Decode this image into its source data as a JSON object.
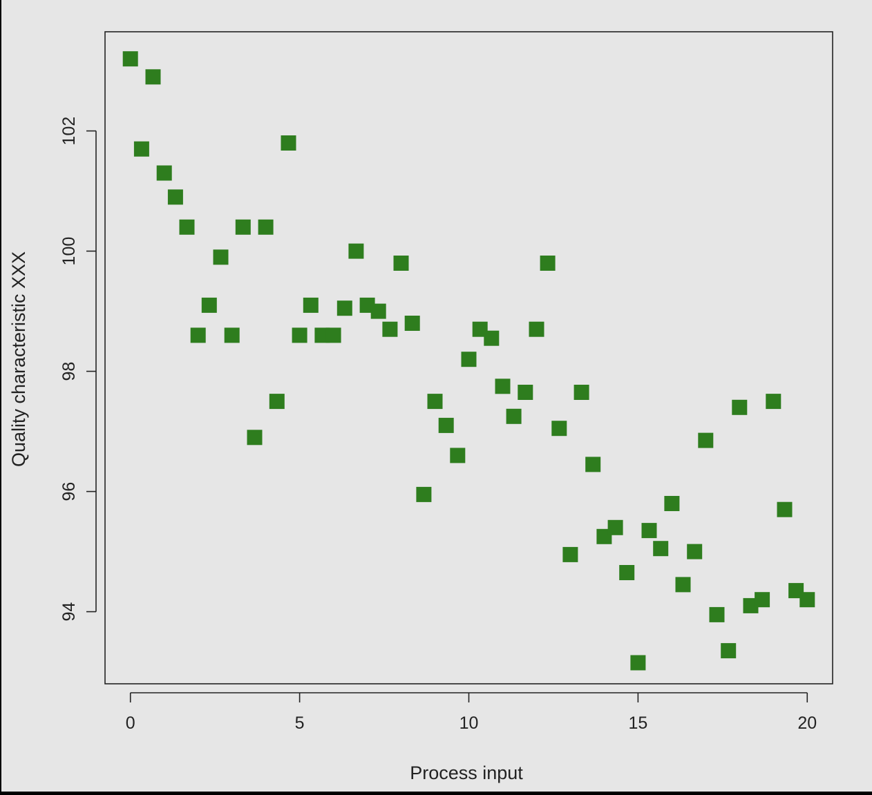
{
  "chart_data": {
    "type": "scatter",
    "title": "",
    "xlabel": "Process input",
    "ylabel": "Quality characteristic XXX",
    "xlim": [
      -0.75,
      20.75
    ],
    "ylim": [
      92.8,
      103.65
    ],
    "xticks": [
      0,
      5,
      10,
      15,
      20
    ],
    "yticks": [
      94,
      96,
      98,
      100,
      102
    ],
    "grid": false,
    "marker": "square",
    "marker_color": "#2e7d1e",
    "background_color": "#e6e6e6",
    "points": [
      {
        "x": 0.0,
        "y": 103.2
      },
      {
        "x": 0.33,
        "y": 101.7
      },
      {
        "x": 0.67,
        "y": 102.9
      },
      {
        "x": 1.0,
        "y": 101.3
      },
      {
        "x": 1.33,
        "y": 100.9
      },
      {
        "x": 1.67,
        "y": 100.4
      },
      {
        "x": 2.0,
        "y": 98.6
      },
      {
        "x": 2.33,
        "y": 99.1
      },
      {
        "x": 2.67,
        "y": 99.9
      },
      {
        "x": 3.0,
        "y": 98.6
      },
      {
        "x": 3.33,
        "y": 100.4
      },
      {
        "x": 3.67,
        "y": 96.9
      },
      {
        "x": 4.0,
        "y": 100.4
      },
      {
        "x": 4.33,
        "y": 97.5
      },
      {
        "x": 4.67,
        "y": 101.8
      },
      {
        "x": 5.0,
        "y": 98.6
      },
      {
        "x": 5.33,
        "y": 99.1
      },
      {
        "x": 5.67,
        "y": 98.6
      },
      {
        "x": 6.0,
        "y": 98.6
      },
      {
        "x": 6.33,
        "y": 99.05
      },
      {
        "x": 6.67,
        "y": 100.0
      },
      {
        "x": 7.0,
        "y": 99.1
      },
      {
        "x": 7.33,
        "y": 99.0
      },
      {
        "x": 7.67,
        "y": 98.7
      },
      {
        "x": 8.0,
        "y": 99.8
      },
      {
        "x": 8.33,
        "y": 98.8
      },
      {
        "x": 8.67,
        "y": 95.95
      },
      {
        "x": 9.0,
        "y": 97.5
      },
      {
        "x": 9.33,
        "y": 97.1
      },
      {
        "x": 9.67,
        "y": 96.6
      },
      {
        "x": 10.0,
        "y": 98.2
      },
      {
        "x": 10.33,
        "y": 98.7
      },
      {
        "x": 10.67,
        "y": 98.55
      },
      {
        "x": 11.0,
        "y": 97.75
      },
      {
        "x": 11.33,
        "y": 97.25
      },
      {
        "x": 11.67,
        "y": 97.65
      },
      {
        "x": 12.0,
        "y": 98.7
      },
      {
        "x": 12.33,
        "y": 99.8
      },
      {
        "x": 12.67,
        "y": 97.05
      },
      {
        "x": 13.0,
        "y": 94.95
      },
      {
        "x": 13.33,
        "y": 97.65
      },
      {
        "x": 13.67,
        "y": 96.45
      },
      {
        "x": 14.0,
        "y": 95.25
      },
      {
        "x": 14.33,
        "y": 95.4
      },
      {
        "x": 14.67,
        "y": 94.65
      },
      {
        "x": 15.0,
        "y": 93.15
      },
      {
        "x": 15.33,
        "y": 95.35
      },
      {
        "x": 15.67,
        "y": 95.05
      },
      {
        "x": 16.0,
        "y": 95.8
      },
      {
        "x": 16.33,
        "y": 94.45
      },
      {
        "x": 16.67,
        "y": 95.0
      },
      {
        "x": 17.0,
        "y": 96.85
      },
      {
        "x": 17.33,
        "y": 93.95
      },
      {
        "x": 17.67,
        "y": 93.35
      },
      {
        "x": 18.0,
        "y": 97.4
      },
      {
        "x": 18.33,
        "y": 94.1
      },
      {
        "x": 18.67,
        "y": 94.2
      },
      {
        "x": 19.0,
        "y": 97.5
      },
      {
        "x": 19.33,
        "y": 95.7
      },
      {
        "x": 19.67,
        "y": 94.35
      },
      {
        "x": 20.0,
        "y": 94.2
      }
    ]
  }
}
